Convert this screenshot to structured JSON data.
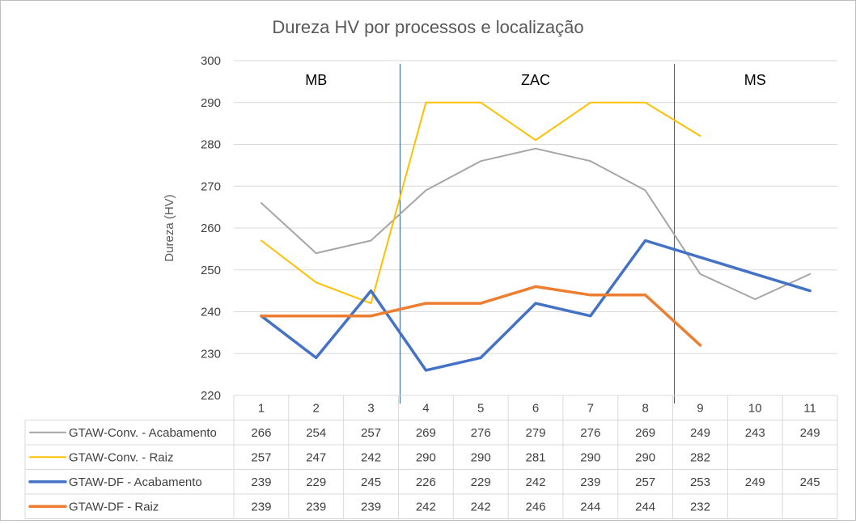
{
  "chart_data": {
    "type": "line",
    "title": "Dureza HV por processos e localização",
    "xlabel": "",
    "ylabel": "Dureza (HV)",
    "ylim": [
      220,
      300
    ],
    "yticks": [
      220,
      230,
      240,
      250,
      260,
      270,
      280,
      290,
      300
    ],
    "categories": [
      "1",
      "2",
      "3",
      "4",
      "5",
      "6",
      "7",
      "8",
      "9",
      "10",
      "11"
    ],
    "grid": true,
    "legend": "data-table",
    "regions": [
      {
        "label": "MB",
        "from": "1",
        "to": "3"
      },
      {
        "label": "ZAC",
        "from": "4",
        "to": "8"
      },
      {
        "label": "MS",
        "from": "9",
        "to": "11"
      }
    ],
    "series": [
      {
        "name": "GTAW-Conv. - Acabamento",
        "color": "#a5a5a5",
        "width": 2,
        "values": [
          266,
          254,
          257,
          269,
          276,
          279,
          276,
          269,
          249,
          243,
          249
        ]
      },
      {
        "name": "GTAW-Conv. - Raiz",
        "color": "#ffc000",
        "width": 2,
        "values": [
          257,
          247,
          242,
          290,
          290,
          281,
          290,
          290,
          282,
          null,
          null
        ]
      },
      {
        "name": "GTAW-DF - Acabamento",
        "color": "#4472c4",
        "width": 3.5,
        "values": [
          239,
          229,
          245,
          226,
          229,
          242,
          239,
          257,
          253,
          249,
          245
        ]
      },
      {
        "name": "GTAW-DF - Raiz",
        "color": "#ed7d31",
        "width": 3.5,
        "values": [
          239,
          239,
          239,
          242,
          242,
          246,
          244,
          244,
          232,
          null,
          null
        ]
      }
    ]
  }
}
